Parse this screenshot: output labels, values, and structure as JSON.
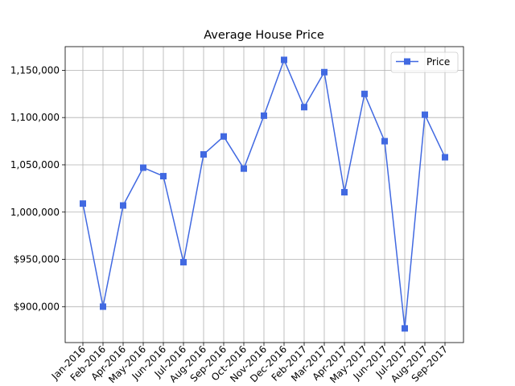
{
  "chart_data": {
    "type": "line",
    "title": "Average House Price",
    "xlabel": "",
    "ylabel": "",
    "categories": [
      "Jan-2016",
      "Feb-2016",
      "Apr-2016",
      "May-2016",
      "Jun-2016",
      "Jul-2016",
      "Aug-2016",
      "Sep-2016",
      "Oct-2016",
      "Nov-2016",
      "Dec-2016",
      "Feb-2017",
      "Mar-2017",
      "Apr-2017",
      "May-2017",
      "Jun-2017",
      "Jul-2017",
      "Aug-2017",
      "Sep-2017"
    ],
    "series": [
      {
        "name": "Price",
        "color": "#4169e1",
        "marker": "square",
        "values": [
          1009000,
          900000,
          1007000,
          1047000,
          1038000,
          947000,
          1061000,
          1080000,
          1046000,
          1102000,
          1161000,
          1111000,
          1148000,
          1021000,
          1125000,
          1075000,
          877000,
          1103000,
          1058000
        ]
      }
    ],
    "ylim": [
      862000,
      1175000
    ],
    "y_ticks": [
      900000,
      950000,
      1000000,
      1050000,
      1100000,
      1150000
    ],
    "y_tick_labels": [
      "$900,000",
      "$950,000",
      "1,000,000",
      "1,050,000",
      "1,100,000",
      "1,150,000"
    ],
    "grid": true,
    "legend_position": "top-right"
  }
}
